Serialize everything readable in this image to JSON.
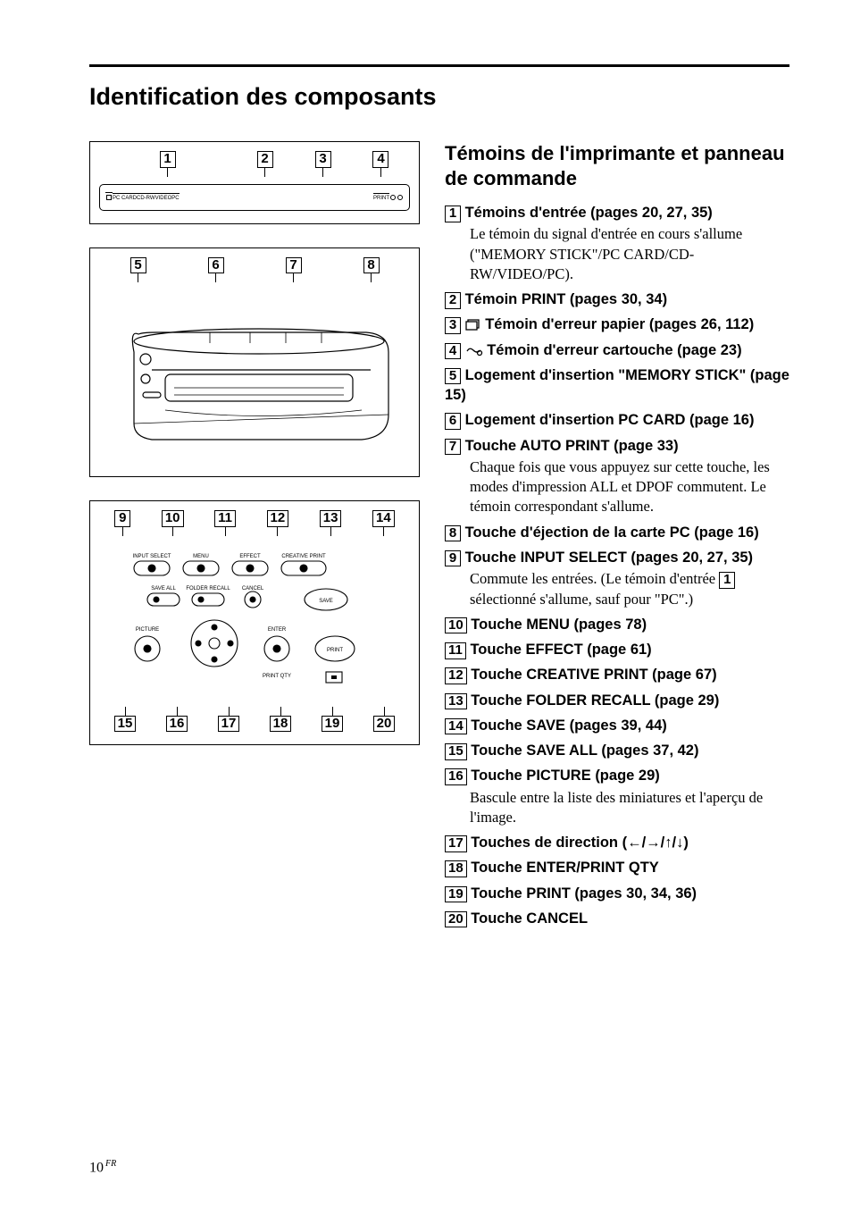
{
  "title": "Identification des composants",
  "subtitle": "Témoins de l'imprimante et panneau de commande",
  "page_number": "10",
  "page_lang": "FR",
  "colors": {
    "text": "#000000",
    "bg": "#ffffff",
    "rule": "#000000"
  },
  "panels": {
    "top": {
      "labels_above": [
        "1",
        "2",
        "3",
        "4"
      ],
      "strip_indicators": [
        "",
        "PC CARD",
        "CD-RW",
        "VIDEO",
        "PC",
        "PRINT"
      ]
    },
    "middle": {
      "labels_above": [
        "5",
        "6",
        "7",
        "8"
      ]
    },
    "bottom": {
      "labels_above": [
        "9",
        "10",
        "11",
        "12",
        "13",
        "14"
      ],
      "labels_below": [
        "15",
        "16",
        "17",
        "18",
        "19",
        "20"
      ],
      "button_rows": [
        [
          "INPUT SELECT",
          "MENU",
          "EFFECT",
          "CREATIVE PRINT"
        ],
        [
          "SAVE ALL",
          "FOLDER RECALL",
          "CANCEL",
          "SAVE"
        ],
        [
          "PICTURE",
          "",
          "ENTER",
          "PRINT"
        ],
        [
          "",
          "",
          "PRINT QTY",
          ""
        ]
      ]
    }
  },
  "items": [
    {
      "num": "1",
      "title": "Témoins d'entrée (pages 20, 27, 35)",
      "desc": "Le témoin du signal d'entrée en cours s'allume (\"MEMORY STICK\"/PC CARD/CD-RW/VIDEO/PC)."
    },
    {
      "num": "2",
      "title": "Témoin PRINT (pages 30, 34)"
    },
    {
      "num": "3",
      "icon": "paper-error",
      "title": "Témoin d'erreur papier (pages 26, 112)"
    },
    {
      "num": "4",
      "icon": "cartridge-error",
      "title": "Témoin d'erreur cartouche (page 23)"
    },
    {
      "num": "5",
      "title": "Logement d'insertion \"MEMORY STICK\" (page 15)"
    },
    {
      "num": "6",
      "title": "Logement d'insertion PC CARD (page 16)"
    },
    {
      "num": "7",
      "title": "Touche AUTO PRINT (page 33)",
      "desc": "Chaque fois que vous appuyez sur cette touche, les modes d'impression ALL et DPOF  commutent. Le témoin correspondant s'allume."
    },
    {
      "num": "8",
      "title": "Touche d'éjection de la carte PC (page 16)"
    },
    {
      "num": "9",
      "title": "Touche INPUT SELECT (pages 20, 27, 35)",
      "desc_parts": [
        "Commute les entrées. (Le témoin d'entrée ",
        "1",
        " sélectionné s'allume, sauf pour \"PC\".)"
      ]
    },
    {
      "num": "10",
      "title": "Touche MENU (pages 78)"
    },
    {
      "num": "11",
      "title": "Touche EFFECT (page 61)"
    },
    {
      "num": "12",
      "title": "Touche CREATIVE PRINT (page 67)"
    },
    {
      "num": "13",
      "title": "Touche FOLDER RECALL (page 29)"
    },
    {
      "num": "14",
      "title": "Touche SAVE (pages 39, 44)"
    },
    {
      "num": "15",
      "title": "Touche SAVE ALL (pages 37, 42)"
    },
    {
      "num": "16",
      "title": "Touche PICTURE (page 29)",
      "desc": "Bascule entre la liste des miniatures et l'aperçu de l'image."
    },
    {
      "num": "17",
      "title": "Touches de direction (←/→/↑/↓)"
    },
    {
      "num": "18",
      "title": "Touche ENTER/PRINT QTY"
    },
    {
      "num": "19",
      "title": "Touche PRINT (pages 30, 34, 36)"
    },
    {
      "num": "20",
      "title": "Touche CANCEL"
    }
  ]
}
